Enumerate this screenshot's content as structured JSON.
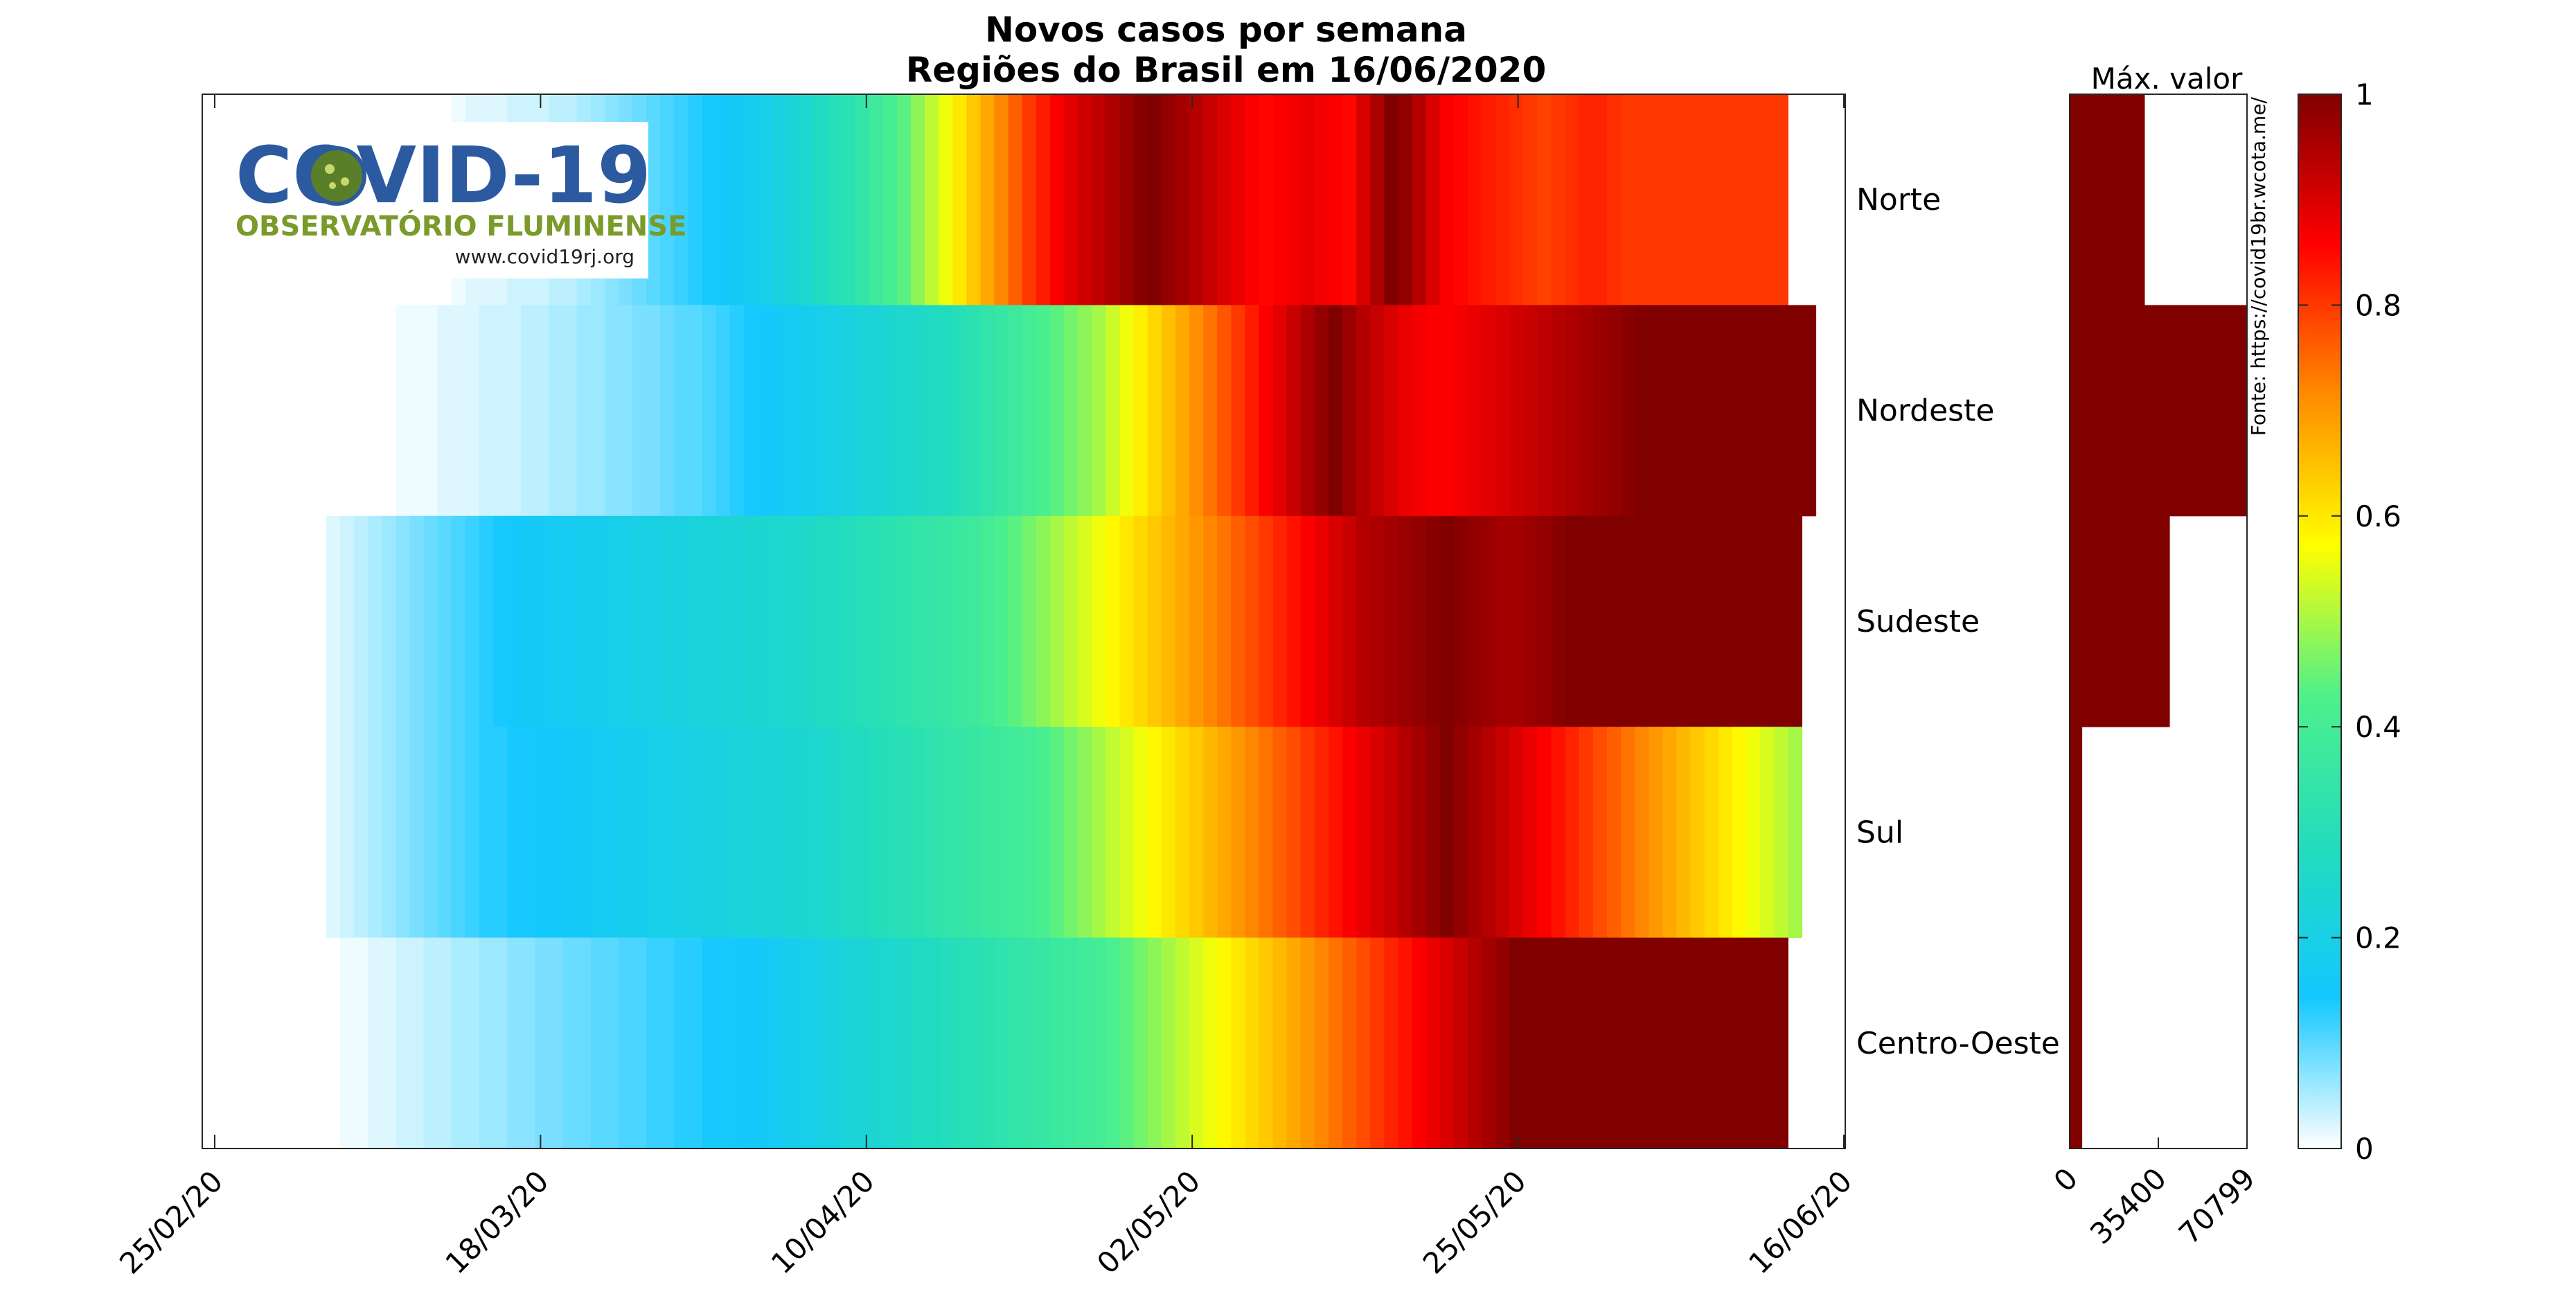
{
  "chart_data": {
    "type": "heatmap",
    "title": "Novos casos por semana",
    "subtitle": "Regiões do Brasil em 16/06/2020",
    "x_start": "25/02/20",
    "x_end": "16/06/20",
    "x_ticks": [
      "25/02/20",
      "18/03/20",
      "10/04/20",
      "02/05/20",
      "25/05/20",
      "16/06/20"
    ],
    "regions": [
      {
        "name": "Norte",
        "start": "13/03/20",
        "values": [
          0.01,
          0.02,
          0.02,
          0.02,
          0.03,
          0.03,
          0.03,
          0.04,
          0.04,
          0.05,
          0.06,
          0.07,
          0.08,
          0.09,
          0.1,
          0.11,
          0.12,
          0.13,
          0.14,
          0.15,
          0.16,
          0.18,
          0.19,
          0.21,
          0.23,
          0.25,
          0.27,
          0.3,
          0.32,
          0.35,
          0.38,
          0.41,
          0.44,
          0.48,
          0.52,
          0.56,
          0.6,
          0.64,
          0.68,
          0.72,
          0.76,
          0.8,
          0.83,
          0.86,
          0.89,
          0.91,
          0.93,
          0.95,
          0.97,
          0.99,
          1.0,
          0.98,
          0.96,
          0.94,
          0.92,
          0.9,
          0.88,
          0.86,
          0.85,
          0.86,
          0.87,
          0.88,
          0.87,
          0.86,
          0.85,
          0.9,
          0.95,
          1.0,
          0.98,
          0.94,
          0.9,
          0.86,
          0.85,
          0.84,
          0.83,
          0.82,
          0.81,
          0.8,
          0.79,
          0.8,
          0.81,
          0.82,
          0.82,
          0.81,
          0.8,
          0.8,
          0.8,
          0.8,
          0.8,
          0.8,
          0.8,
          0.8,
          0.8,
          0.8,
          0.8,
          0.8
        ]
      },
      {
        "name": "Nordeste",
        "start": "09/03/20",
        "values": [
          0.01,
          0.01,
          0.01,
          0.02,
          0.02,
          0.02,
          0.03,
          0.03,
          0.03,
          0.04,
          0.04,
          0.05,
          0.05,
          0.06,
          0.06,
          0.07,
          0.07,
          0.08,
          0.08,
          0.09,
          0.1,
          0.1,
          0.11,
          0.12,
          0.13,
          0.14,
          0.15,
          0.16,
          0.17,
          0.18,
          0.19,
          0.2,
          0.21,
          0.22,
          0.23,
          0.24,
          0.25,
          0.26,
          0.27,
          0.28,
          0.3,
          0.32,
          0.34,
          0.36,
          0.38,
          0.4,
          0.42,
          0.44,
          0.46,
          0.48,
          0.5,
          0.53,
          0.56,
          0.59,
          0.62,
          0.65,
          0.68,
          0.71,
          0.74,
          0.77,
          0.8,
          0.83,
          0.86,
          0.89,
          0.92,
          0.95,
          0.98,
          1.0,
          0.97,
          0.94,
          0.92,
          0.9,
          0.88,
          0.87,
          0.86,
          0.86,
          0.87,
          0.88,
          0.89,
          0.9,
          0.91,
          0.92,
          0.93,
          0.94,
          0.95,
          0.96,
          0.97,
          0.98,
          0.99,
          1.0,
          1.0,
          1.0,
          1.0,
          1.0,
          1.0,
          1.0,
          1.0,
          1.0,
          1.0,
          1.0,
          1.0,
          1.0
        ]
      },
      {
        "name": "Sudeste",
        "start": "04/03/20",
        "values": [
          0.02,
          0.03,
          0.04,
          0.05,
          0.06,
          0.07,
          0.08,
          0.09,
          0.1,
          0.11,
          0.12,
          0.13,
          0.14,
          0.15,
          0.16,
          0.16,
          0.17,
          0.17,
          0.18,
          0.18,
          0.19,
          0.19,
          0.2,
          0.2,
          0.21,
          0.21,
          0.22,
          0.22,
          0.23,
          0.23,
          0.24,
          0.24,
          0.25,
          0.25,
          0.26,
          0.27,
          0.28,
          0.29,
          0.3,
          0.31,
          0.32,
          0.33,
          0.34,
          0.35,
          0.36,
          0.37,
          0.38,
          0.4,
          0.42,
          0.44,
          0.46,
          0.48,
          0.5,
          0.52,
          0.54,
          0.56,
          0.58,
          0.6,
          0.62,
          0.64,
          0.66,
          0.68,
          0.7,
          0.72,
          0.74,
          0.76,
          0.78,
          0.8,
          0.82,
          0.84,
          0.86,
          0.88,
          0.9,
          0.92,
          0.94,
          0.95,
          0.96,
          0.97,
          0.98,
          0.99,
          1.0,
          0.99,
          0.98,
          0.97,
          0.96,
          0.96,
          0.97,
          0.98,
          0.99,
          1.0,
          1.0,
          1.0,
          1.0,
          1.0,
          1.0,
          1.0,
          1.0,
          1.0,
          1.0,
          1.0,
          1.0,
          1.0,
          1.0,
          1.0,
          1.0,
          1.0
        ]
      },
      {
        "name": "Sul",
        "start": "04/03/20",
        "values": [
          0.02,
          0.03,
          0.04,
          0.05,
          0.06,
          0.07,
          0.08,
          0.09,
          0.1,
          0.11,
          0.12,
          0.13,
          0.13,
          0.14,
          0.14,
          0.15,
          0.15,
          0.16,
          0.16,
          0.17,
          0.17,
          0.18,
          0.18,
          0.19,
          0.19,
          0.2,
          0.2,
          0.21,
          0.21,
          0.22,
          0.22,
          0.23,
          0.23,
          0.24,
          0.24,
          0.25,
          0.26,
          0.27,
          0.28,
          0.29,
          0.3,
          0.31,
          0.32,
          0.33,
          0.34,
          0.35,
          0.36,
          0.37,
          0.38,
          0.39,
          0.4,
          0.42,
          0.44,
          0.46,
          0.48,
          0.5,
          0.52,
          0.54,
          0.56,
          0.58,
          0.6,
          0.62,
          0.64,
          0.66,
          0.68,
          0.7,
          0.72,
          0.74,
          0.76,
          0.78,
          0.8,
          0.82,
          0.84,
          0.86,
          0.88,
          0.9,
          0.92,
          0.94,
          0.96,
          0.98,
          1.0,
          0.98,
          0.96,
          0.94,
          0.92,
          0.9,
          0.88,
          0.86,
          0.84,
          0.82,
          0.8,
          0.78,
          0.76,
          0.74,
          0.72,
          0.7,
          0.68,
          0.66,
          0.64,
          0.62,
          0.6,
          0.58,
          0.56,
          0.54,
          0.52,
          0.5
        ]
      },
      {
        "name": "Centro-Oeste",
        "start": "05/03/20",
        "values": [
          0.01,
          0.01,
          0.02,
          0.02,
          0.03,
          0.03,
          0.04,
          0.04,
          0.05,
          0.05,
          0.06,
          0.06,
          0.07,
          0.07,
          0.08,
          0.08,
          0.09,
          0.09,
          0.1,
          0.1,
          0.11,
          0.11,
          0.12,
          0.12,
          0.13,
          0.13,
          0.14,
          0.14,
          0.15,
          0.15,
          0.16,
          0.17,
          0.18,
          0.19,
          0.2,
          0.21,
          0.22,
          0.23,
          0.24,
          0.25,
          0.26,
          0.27,
          0.28,
          0.29,
          0.3,
          0.31,
          0.32,
          0.33,
          0.34,
          0.35,
          0.36,
          0.37,
          0.38,
          0.39,
          0.4,
          0.42,
          0.44,
          0.46,
          0.48,
          0.5,
          0.52,
          0.54,
          0.56,
          0.58,
          0.6,
          0.62,
          0.64,
          0.66,
          0.68,
          0.7,
          0.72,
          0.74,
          0.76,
          0.78,
          0.8,
          0.82,
          0.84,
          0.86,
          0.88,
          0.9,
          0.92,
          0.94,
          0.96,
          0.98,
          1.0,
          1.0,
          1.0,
          1.0,
          1.0,
          1.0,
          1.0,
          1.0,
          1.0,
          1.0,
          1.0,
          1.0,
          1.0,
          1.0,
          1.0,
          1.0,
          1.0,
          1.0,
          1.0,
          1.0
        ]
      }
    ],
    "max_panel": {
      "title": "Máx. valor",
      "xlim": [
        0,
        70799
      ],
      "ticks": [
        "0",
        "35400",
        "70799"
      ],
      "values": [
        {
          "region": "Norte",
          "max": 30000
        },
        {
          "region": "Nordeste",
          "max": 70799
        },
        {
          "region": "Sudeste",
          "max": 40000
        },
        {
          "region": "Sul",
          "max": 5000
        },
        {
          "region": "Centro-Oeste",
          "max": 5000
        }
      ],
      "bar_color": "#800000"
    },
    "colorbar": {
      "range": [
        0,
        1
      ],
      "ticks": [
        "0",
        "0.2",
        "0.4",
        "0.6",
        "0.8",
        "1"
      ],
      "colormap": [
        "#ffffff",
        "#13c8ff",
        "#22dcbd",
        "#4df08c",
        "#ffff00",
        "#ff8c00",
        "#ff0000",
        "#800000"
      ]
    },
    "source": "Fonte: https://covid19br.wcota.me/"
  },
  "logo": {
    "title": "COVID-19",
    "subtitle": "OBSERVATÓRIO FLUMINENSE",
    "url": "www.covid19rj.org"
  }
}
